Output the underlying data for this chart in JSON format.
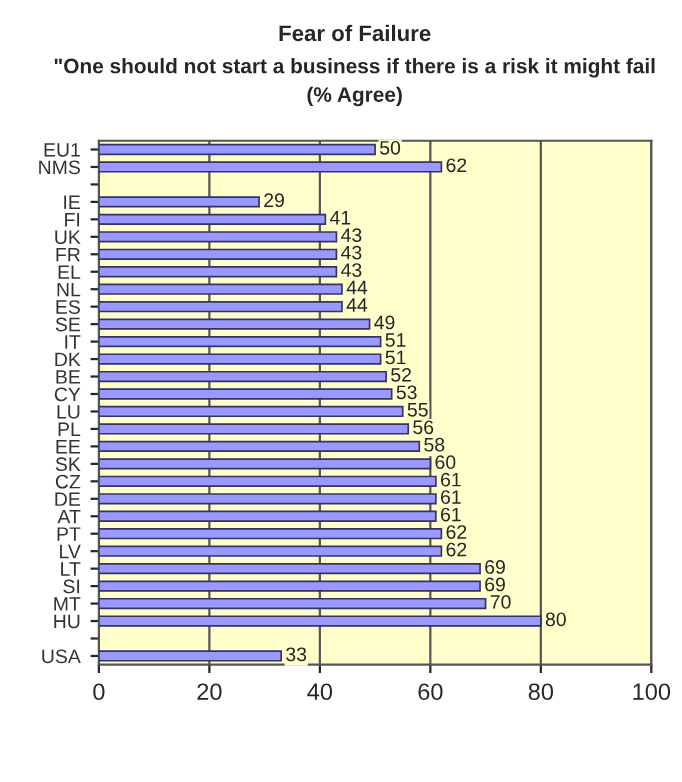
{
  "chart_data": {
    "type": "bar",
    "orientation": "horizontal",
    "title": "Fear of Failure",
    "subtitle": "\"One should not start a business if there is a risk it might fail\n(% Agree)",
    "categories": [
      "EU1",
      "NMS",
      null,
      "IE",
      "FI",
      "UK",
      "FR",
      "EL",
      "NL",
      "ES",
      "SE",
      "IT",
      "DK",
      "BE",
      "CY",
      "LU",
      "PL",
      "EE",
      "SK",
      "CZ",
      "DE",
      "AT",
      "PT",
      "LV",
      "LT",
      "SI",
      "MT",
      "HU",
      null,
      "USA"
    ],
    "values": [
      50,
      62,
      null,
      29,
      41,
      43,
      43,
      43,
      44,
      44,
      49,
      51,
      51,
      52,
      53,
      55,
      56,
      58,
      60,
      61,
      61,
      61,
      62,
      62,
      69,
      69,
      70,
      80,
      null,
      33
    ],
    "color": "#9999ff",
    "xlim": [
      0,
      100
    ],
    "xticks": [
      0,
      20,
      40,
      60,
      80,
      100
    ],
    "grid": "x",
    "data_labels": true,
    "legend": false
  }
}
